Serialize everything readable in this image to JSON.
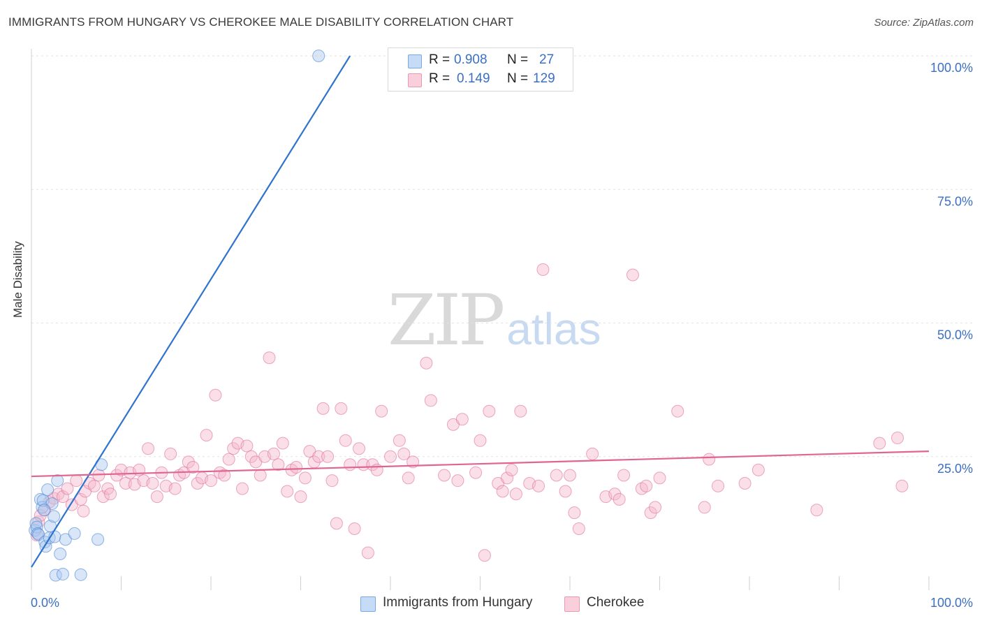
{
  "header": {
    "title": "IMMIGRANTS FROM HUNGARY VS CHEROKEE MALE DISABILITY CORRELATION CHART",
    "source": "Source: ZipAtlas.com"
  },
  "watermark": {
    "zip": "ZIP",
    "atlas": "atlas"
  },
  "stats_legend": {
    "rows": [
      {
        "r_label": "R =",
        "r_value": "0.908",
        "n_label": "N =",
        "n_value": "27",
        "color": "#a8c8f0"
      },
      {
        "r_label": "R =",
        "r_value": "0.149",
        "n_label": "N =",
        "n_value": "129",
        "color": "#f5b8cb"
      }
    ]
  },
  "chart_data": {
    "type": "scatter",
    "title": "IMMIGRANTS FROM HUNGARY VS CHEROKEE MALE DISABILITY CORRELATION CHART",
    "ylabel": "Male Disability",
    "xlabel": "",
    "xlim": [
      0,
      100
    ],
    "ylim": [
      0,
      100
    ],
    "x_tick_labels": [
      "0.0%",
      "100.0%"
    ],
    "y_tick_labels": [
      "25.0%",
      "50.0%",
      "75.0%",
      "100.0%"
    ],
    "y_ticks": [
      25,
      50,
      75,
      100
    ],
    "grid": true,
    "legend_position": "bottom-center",
    "series": [
      {
        "name": "Immigrants from Hungary",
        "color": "#4a86d6",
        "fill": "#a8c8f0",
        "trend": {
          "x1": 0,
          "y1": 4.3,
          "x2": 35.5,
          "y2": 100
        },
        "points": [
          [
            0.4,
            11.2
          ],
          [
            0.5,
            12.5
          ],
          [
            0.6,
            11.8
          ],
          [
            0.7,
            10.6
          ],
          [
            0.8,
            10.4
          ],
          [
            1.0,
            17.0
          ],
          [
            1.2,
            15.5
          ],
          [
            1.3,
            16.8
          ],
          [
            1.5,
            9.0
          ],
          [
            1.6,
            8.2
          ],
          [
            1.8,
            18.8
          ],
          [
            2.0,
            9.8
          ],
          [
            2.1,
            12.0
          ],
          [
            2.3,
            16.2
          ],
          [
            2.5,
            13.8
          ],
          [
            2.6,
            10.0
          ],
          [
            2.7,
            2.8
          ],
          [
            2.9,
            20.5
          ],
          [
            3.2,
            6.8
          ],
          [
            3.5,
            3.0
          ],
          [
            3.8,
            9.5
          ],
          [
            4.8,
            10.6
          ],
          [
            5.5,
            2.9
          ],
          [
            7.4,
            9.5
          ],
          [
            7.8,
            23.5
          ],
          [
            32.0,
            100.0
          ],
          [
            1.4,
            15.0
          ]
        ]
      },
      {
        "name": "Cherokee",
        "color": "#e0709a",
        "fill": "#f5b8cb",
        "trend": {
          "x1": 0,
          "y1": 21.3,
          "x2": 100,
          "y2": 26.0
        },
        "points": [
          [
            0.6,
            10.3
          ],
          [
            0.8,
            12.8
          ],
          [
            1.0,
            14.0
          ],
          [
            1.5,
            15.0
          ],
          [
            2.0,
            16.5
          ],
          [
            2.5,
            17.2
          ],
          [
            3.0,
            18.0
          ],
          [
            3.5,
            17.5
          ],
          [
            4.0,
            19.0
          ],
          [
            4.5,
            16.0
          ],
          [
            5.0,
            20.5
          ],
          [
            5.5,
            17.0
          ],
          [
            5.8,
            14.8
          ],
          [
            6.0,
            18.5
          ],
          [
            6.5,
            20.0
          ],
          [
            7.0,
            19.5
          ],
          [
            7.5,
            21.5
          ],
          [
            8.0,
            17.5
          ],
          [
            8.5,
            19.0
          ],
          [
            8.8,
            18.0
          ],
          [
            9.5,
            21.5
          ],
          [
            10.0,
            22.5
          ],
          [
            10.5,
            20.0
          ],
          [
            11.0,
            22.0
          ],
          [
            11.5,
            19.8
          ],
          [
            12.0,
            22.5
          ],
          [
            12.5,
            20.5
          ],
          [
            13.0,
            26.5
          ],
          [
            13.5,
            20.0
          ],
          [
            14.0,
            17.5
          ],
          [
            14.5,
            22.0
          ],
          [
            15.0,
            19.5
          ],
          [
            15.5,
            25.5
          ],
          [
            16.0,
            19.0
          ],
          [
            16.5,
            21.5
          ],
          [
            17.0,
            22.0
          ],
          [
            17.5,
            24.0
          ],
          [
            18.0,
            23.0
          ],
          [
            18.5,
            20.0
          ],
          [
            19.0,
            21.0
          ],
          [
            19.5,
            29.0
          ],
          [
            20.0,
            20.5
          ],
          [
            20.5,
            36.5
          ],
          [
            21.0,
            22.0
          ],
          [
            21.5,
            21.5
          ],
          [
            22.0,
            24.5
          ],
          [
            22.5,
            26.5
          ],
          [
            23.0,
            27.5
          ],
          [
            23.5,
            19.0
          ],
          [
            24.0,
            27.0
          ],
          [
            24.5,
            25.0
          ],
          [
            25.0,
            24.0
          ],
          [
            25.5,
            21.5
          ],
          [
            26.0,
            25.0
          ],
          [
            26.5,
            43.5
          ],
          [
            27.0,
            25.5
          ],
          [
            27.5,
            23.5
          ],
          [
            28.0,
            27.5
          ],
          [
            28.5,
            18.5
          ],
          [
            29.0,
            22.5
          ],
          [
            29.5,
            23.0
          ],
          [
            30.0,
            17.5
          ],
          [
            30.5,
            21.0
          ],
          [
            31.0,
            26.0
          ],
          [
            31.5,
            24.0
          ],
          [
            32.0,
            25.0
          ],
          [
            32.5,
            34.0
          ],
          [
            33.0,
            25.0
          ],
          [
            33.5,
            20.5
          ],
          [
            34.0,
            12.5
          ],
          [
            34.5,
            34.0
          ],
          [
            35.0,
            28.0
          ],
          [
            35.5,
            23.5
          ],
          [
            36.0,
            11.5
          ],
          [
            36.5,
            26.5
          ],
          [
            37.0,
            23.5
          ],
          [
            37.5,
            7.0
          ],
          [
            38.0,
            23.5
          ],
          [
            38.5,
            22.5
          ],
          [
            39.0,
            33.5
          ],
          [
            40.0,
            25.0
          ],
          [
            41.0,
            28.0
          ],
          [
            41.5,
            25.5
          ],
          [
            42.0,
            21.0
          ],
          [
            42.5,
            24.0
          ],
          [
            44.0,
            42.5
          ],
          [
            44.5,
            35.5
          ],
          [
            46.0,
            21.5
          ],
          [
            47.0,
            31.0
          ],
          [
            47.5,
            20.5
          ],
          [
            48.0,
            32.0
          ],
          [
            49.5,
            22.0
          ],
          [
            50.0,
            28.0
          ],
          [
            50.5,
            6.5
          ],
          [
            51.0,
            33.5
          ],
          [
            52.0,
            20.0
          ],
          [
            52.5,
            18.5
          ],
          [
            53.0,
            21.0
          ],
          [
            53.5,
            22.5
          ],
          [
            54.0,
            18.0
          ],
          [
            54.5,
            33.5
          ],
          [
            55.5,
            20.0
          ],
          [
            56.5,
            19.5
          ],
          [
            57.0,
            60.0
          ],
          [
            58.5,
            21.5
          ],
          [
            59.5,
            18.5
          ],
          [
            60.0,
            21.5
          ],
          [
            60.5,
            14.5
          ],
          [
            61.0,
            11.5
          ],
          [
            62.5,
            25.5
          ],
          [
            64.0,
            17.5
          ],
          [
            65.0,
            18.0
          ],
          [
            65.5,
            17.0
          ],
          [
            66.0,
            21.5
          ],
          [
            67.0,
            59.0
          ],
          [
            68.0,
            19.0
          ],
          [
            68.5,
            19.5
          ],
          [
            69.0,
            14.5
          ],
          [
            69.5,
            15.5
          ],
          [
            70.0,
            21.0
          ],
          [
            72.0,
            33.5
          ],
          [
            75.0,
            15.5
          ],
          [
            75.5,
            24.5
          ],
          [
            76.5,
            19.5
          ],
          [
            79.5,
            20.0
          ],
          [
            81.0,
            22.5
          ],
          [
            87.5,
            15.0
          ],
          [
            94.5,
            27.5
          ],
          [
            96.5,
            28.5
          ],
          [
            97.0,
            19.5
          ]
        ]
      }
    ]
  }
}
